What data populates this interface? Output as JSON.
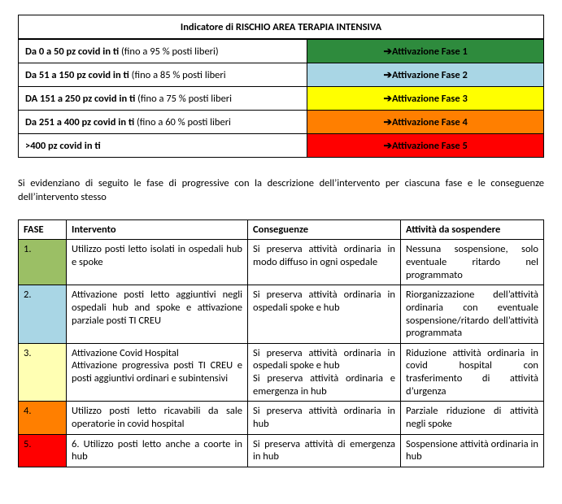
{
  "risk": {
    "header": "Indicatore di RISCHIO AREA TERAPIA INTENSIVA",
    "arrow": "➔",
    "rows": [
      {
        "bold": "Da 0 a 50 pz covid in ti",
        "extra": "(fino a 95 % posti liberi)",
        "action": "Attivazione Fase 1",
        "color": "#2e8b3d",
        "textcolor": "#000000"
      },
      {
        "bold": "Da 51 a 150 pz covid in ti",
        "extra": "(fino a 85 % posti liberi",
        "action": "Attivazione Fase 2",
        "color": "#a9d6e5",
        "textcolor": "#000000"
      },
      {
        "bold": "DA 151 a 250 pz covid in ti",
        "extra": "(fino a 75 % posti liberi",
        "action": "Attivazione Fase 3",
        "color": "#ffff00",
        "textcolor": "#000000"
      },
      {
        "bold": "Da 251 a 400 pz covid in ti",
        "extra": "(fino a 60 % posti liberi",
        "action": "Attivazione Fase 4",
        "color": "#ff7f00",
        "textcolor": "#000000"
      },
      {
        "bold": ">400 pz covid in ti",
        "extra": "",
        "action": "Attivazione Fase 5",
        "color": "#ff0000",
        "textcolor": "#000000"
      }
    ]
  },
  "intro": "Si evidenziano di seguito le fase di progressive con la descrizione dell’intervento per ciascuna fase e le conseguenze dell’intervento stesso",
  "phases": {
    "headers": {
      "fase": "FASE",
      "intervento": "Intervento",
      "conseguenze": "Conseguenze",
      "attivita": "Attività da sospendere"
    },
    "rows": [
      {
        "num": "1.",
        "color": "#9bbf65",
        "intervento": "Utilizzo posti letto isolati in ospedali hub e spoke",
        "conseguenze": "Si preserva attività ordinaria in modo diffuso in ogni ospedale",
        "attivita": "Nessuna sospensione, solo eventuale ritardo nel programmato"
      },
      {
        "num": "2.",
        "color": "#a9d6e5",
        "intervento": "Attivazione posti letto aggiuntivi negli ospedali hub and spoke e attivazione parziale posti TI CREU",
        "conseguenze": "Si preserva attività ordinaria in ospedali spoke e hub",
        "attivita": "Riorganizzazione dell’attività ordinaria con eventuale sospensione/ritardo dell’attività programmata"
      },
      {
        "num": "3.",
        "color": "#ffffb3",
        "intervento": "Attivazione Covid Hospital\nAttivazione progressiva posti TI CREU e posti aggiuntivi ordinari e subintensivi",
        "conseguenze": "Si preserva attività ordinaria in ospedali spoke e hub\nSi preserva attività ordinaria e emergenza in hub",
        "attivita": "Riduzione attività ordinaria in covid hospital con trasferimento di attività d’urgenza"
      },
      {
        "num": "4.",
        "color": "#ff7f00",
        "intervento": "Utilizzo posti letto ricavabili da sale operatorie in covid hospital",
        "conseguenze": "Si preserva attività ordinaria in hub",
        "attivita": "Parziale riduzione di attività negli spoke"
      },
      {
        "num": "5.",
        "color": "#ff0000",
        "intervento": "6.      Utilizzo posti letto anche a coorte in hub",
        "conseguenze": "Si preserva attività di emergenza in hub",
        "attivita": "Sospensione attività ordinaria in hub"
      }
    ]
  }
}
